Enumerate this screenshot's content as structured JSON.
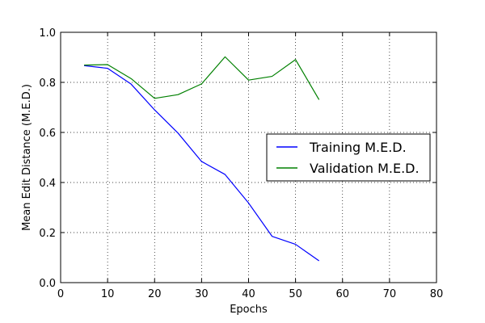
{
  "chart_data": {
    "type": "line",
    "title": "",
    "xlabel": "Epochs",
    "ylabel": "Mean Edit Distance (M.E.D.)",
    "xlim": [
      0,
      80
    ],
    "ylim": [
      0.0,
      1.0
    ],
    "xticks": [
      0,
      10,
      20,
      30,
      40,
      50,
      60,
      70,
      80
    ],
    "yticks": [
      0.0,
      0.2,
      0.4,
      0.6,
      0.8,
      1.0
    ],
    "xtick_labels": [
      "0",
      "10",
      "20",
      "30",
      "40",
      "50",
      "60",
      "70",
      "80"
    ],
    "ytick_labels": [
      "0.0",
      "0.2",
      "0.4",
      "0.6",
      "0.8",
      "1.0"
    ],
    "grid": true,
    "legend_position": "center-right",
    "x": [
      5,
      10,
      15,
      20,
      25,
      30,
      35,
      40,
      45,
      50,
      55
    ],
    "series": [
      {
        "name": "Training M.E.D.",
        "color": "#0000ff",
        "values": [
          0.867,
          0.856,
          0.793,
          0.69,
          0.597,
          0.484,
          0.432,
          0.318,
          0.185,
          0.153,
          0.087
        ]
      },
      {
        "name": "Validation M.E.D.",
        "color": "#008000",
        "values": [
          0.869,
          0.871,
          0.815,
          0.736,
          0.751,
          0.794,
          0.902,
          0.809,
          0.824,
          0.891,
          0.731
        ]
      }
    ]
  }
}
